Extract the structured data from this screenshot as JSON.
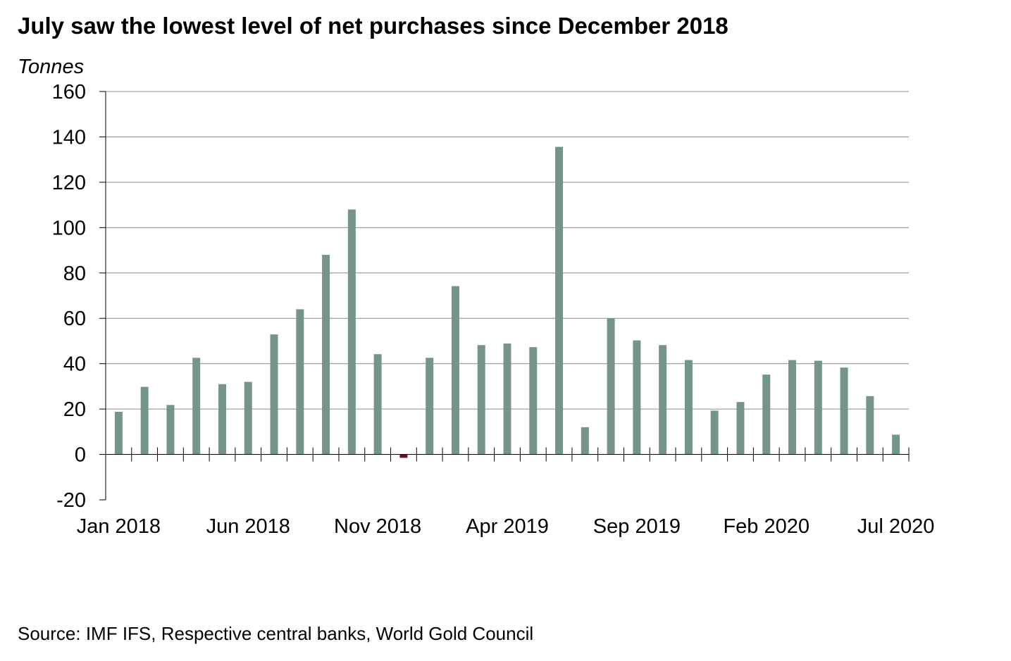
{
  "title": "July saw the lowest level of net purchases since December 2018",
  "source": "Source: IMF IFS, Respective central banks, World Gold Council",
  "colors": {
    "bar": "#76958a",
    "negative_bar": "#6b0f2a",
    "grid": "#8c8c8c",
    "axis": "#000000"
  },
  "chart_data": {
    "type": "bar",
    "title": "July saw the lowest level of net purchases since December 2018",
    "ylabel": "Tonnes",
    "xlabel": "",
    "ylim": [
      -20,
      160
    ],
    "yticks": [
      160,
      140,
      120,
      100,
      80,
      60,
      40,
      20,
      0,
      -20
    ],
    "grid": true,
    "x_tick_labels": [
      "Jan 2018",
      "Jun 2018",
      "Nov 2018",
      "Apr 2019",
      "Sep 2019",
      "Feb 2020",
      "Jul 2020"
    ],
    "categories": [
      "Jan 2018",
      "Feb 2018",
      "Mar 2018",
      "Apr 2018",
      "May 2018",
      "Jun 2018",
      "Jul 2018",
      "Aug 2018",
      "Sep 2018",
      "Oct 2018",
      "Nov 2018",
      "Dec 2018",
      "Jan 2019",
      "Feb 2019",
      "Mar 2019",
      "Apr 2019",
      "May 2019",
      "Jun 2019",
      "Jul 2019",
      "Aug 2019",
      "Sep 2019",
      "Oct 2019",
      "Nov 2019",
      "Dec 2019",
      "Jan 2020",
      "Feb 2020",
      "Mar 2020",
      "Apr 2020",
      "May 2020",
      "Jun 2020",
      "Jul 2020"
    ],
    "values": [
      18.8,
      29.8,
      21.8,
      42.6,
      31.0,
      32.0,
      52.9,
      64.0,
      88.0,
      108.0,
      44.2,
      -1.5,
      42.6,
      74.2,
      48.2,
      48.9,
      47.3,
      135.6,
      12.0,
      60.0,
      50.3,
      48.2,
      41.6,
      19.3,
      23.1,
      35.2,
      41.6,
      41.3,
      38.3,
      25.7,
      8.7
    ]
  }
}
